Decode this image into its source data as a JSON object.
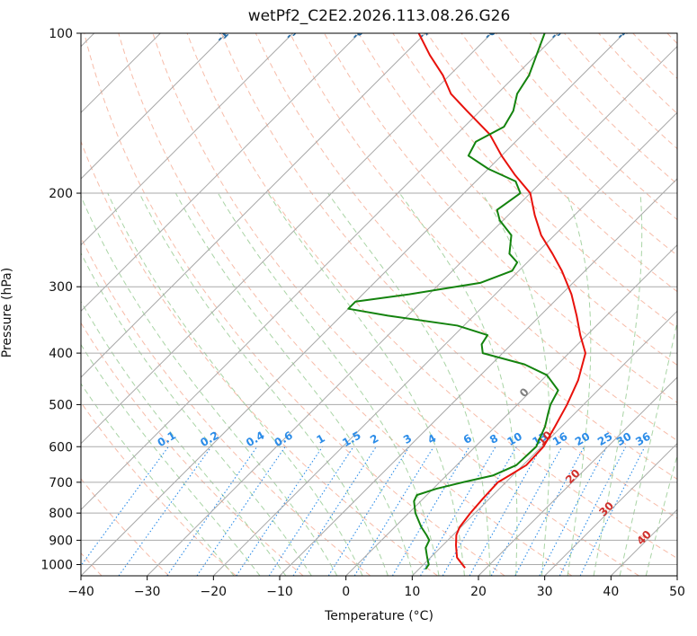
{
  "chart_data": {
    "type": "line",
    "title": "wetPf2_C2E2.2026.113.08.26.G26",
    "xlabel": "Temperature (°C)",
    "ylabel": "Pressure (hPa)",
    "xlim": [
      -40,
      50
    ],
    "ylim": [
      1050,
      100
    ],
    "y_scale": "log",
    "x_ticks": [
      -40,
      -30,
      -20,
      -10,
      0,
      10,
      20,
      30,
      40,
      50
    ],
    "y_ticks": [
      100,
      200,
      300,
      400,
      500,
      600,
      700,
      800,
      900,
      1000
    ],
    "grid": true,
    "series": [
      {
        "color": "#e8120c",
        "pressure": [
          1015,
          970,
          920,
          880,
          850,
          800,
          750,
          700,
          680,
          650,
          600,
          550,
          500,
          450,
          400,
          370,
          340,
          310,
          280,
          260,
          240,
          220,
          200,
          185,
          170,
          155,
          140,
          130,
          120,
          110,
          100
        ],
        "values": [
          16.8,
          14.0,
          12.0,
          10.5,
          9.8,
          9.3,
          9.0,
          8.8,
          9.5,
          10.5,
          10.3,
          9.0,
          7.5,
          5.5,
          2.5,
          -1.0,
          -4.5,
          -8.5,
          -13.5,
          -17.5,
          -22.0,
          -26.0,
          -30.0,
          -35.0,
          -40.0,
          -45.0,
          -52.0,
          -57.0,
          -61.0,
          -66.0,
          -71.0
        ]
      },
      {
        "color": "#14830e",
        "pressure": [
          1020,
          1000,
          970,
          930,
          900,
          880,
          850,
          800,
          760,
          740,
          720,
          700,
          680,
          650,
          600,
          550,
          520,
          500,
          470,
          440,
          420,
          400,
          385,
          370,
          355,
          340,
          330,
          320,
          310,
          295,
          280,
          270,
          260,
          240,
          225,
          215,
          200,
          190,
          180,
          170,
          160,
          150,
          140,
          130,
          120,
          100
        ],
        "values": [
          11.0,
          10.8,
          9.5,
          7.8,
          7.2,
          6.0,
          4.0,
          1.0,
          -1.0,
          -1.5,
          0.5,
          3.5,
          7.0,
          9.0,
          9.2,
          7.5,
          6.0,
          5.0,
          4.0,
          0.0,
          -5.0,
          -13.0,
          -14.5,
          -15.0,
          -21.0,
          -33.0,
          -40.0,
          -40.0,
          -33.0,
          -24.0,
          -21.0,
          -21.5,
          -24.0,
          -26.5,
          -30.5,
          -32.5,
          -31.5,
          -34.0,
          -40.0,
          -45.0,
          -46.0,
          -44.0,
          -45.0,
          -47.0,
          -48.0,
          -52.0
        ]
      }
    ],
    "isotherm_labels": [
      "-100",
      "-90",
      "-80",
      "-70",
      "-60",
      "-50",
      "-40",
      "-30",
      "-20",
      "-10"
    ],
    "mixing_ratio_labels": [
      "0.1",
      "0.2",
      "0.4",
      "0.6",
      "1",
      "1.5",
      "2",
      "3",
      "4",
      "6",
      "8",
      "10",
      "13",
      "16",
      "20",
      "25",
      "30",
      "36"
    ],
    "warm_isotherm_labels": [
      "0",
      "10",
      "20",
      "30",
      "40"
    ],
    "colors": {
      "isotherm_label": "#2a6fa8",
      "mixing_ratio": "#2b8ce8",
      "dry_adiabat": "#f4a58c",
      "moist_adiabat": "#94c98f",
      "zero_isotherm_label": "#808080",
      "warm_label": "#d0302c",
      "isotherm_line": "#a8a8a8",
      "isobar_line": "#aaaaaa"
    }
  }
}
